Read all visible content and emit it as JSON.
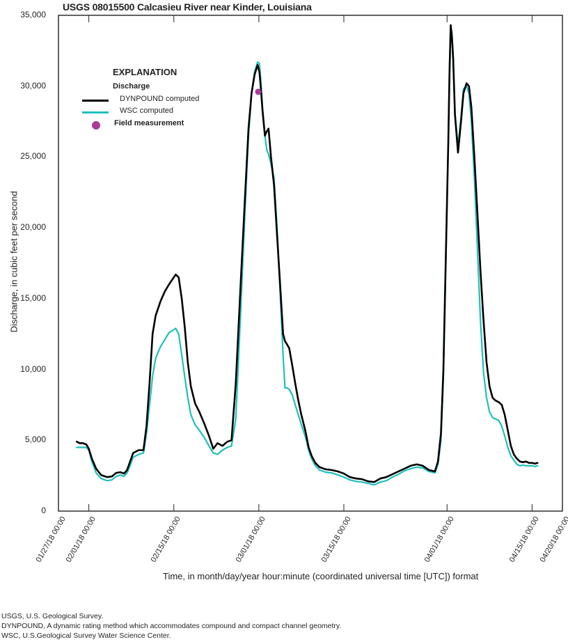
{
  "chart_data": {
    "type": "line",
    "title": "USGS 08015500 Calcasieu River near Kinder, Louisiana",
    "xlabel": "Time, in month/day/year hour:minute (coordinated universal time [UTC]) format",
    "ylabel": "Discharge, in cubic feet per second",
    "ylim": [
      0,
      35000
    ],
    "yticks": [
      "0",
      "5,000",
      "10,000",
      "15,000",
      "20,000",
      "25,000",
      "30,000",
      "35,000"
    ],
    "xticks": [
      {
        "label": "01/27/18 00:00",
        "day": 0
      },
      {
        "label": "02/01/18 00:00",
        "day": 5
      },
      {
        "label": "02/15/18 00:00",
        "day": 19
      },
      {
        "label": "03/01/18 00:00",
        "day": 33
      },
      {
        "label": "03/15/18 00:00",
        "day": 47
      },
      {
        "label": "04/01/18 00:00",
        "day": 64
      },
      {
        "label": "04/15/18 00:00",
        "day": 78
      },
      {
        "label": "04/20/18 00:00",
        "day": 83
      }
    ],
    "x_unit": "days since 01/27/18 00:00",
    "grid": false,
    "legend_position": "upper-left inside",
    "series": [
      {
        "name": "DYNPOUND computed",
        "color": "#000000",
        "x": [
          3.0,
          3.5,
          4.0,
          4.6,
          5.0,
          5.5,
          6.2,
          7.0,
          8.0,
          8.8,
          9.5,
          10.2,
          10.8,
          11.3,
          11.8,
          12.3,
          13.2,
          14.0,
          14.5,
          15.0,
          15.5,
          16.0,
          16.8,
          17.5,
          18.2,
          19.0,
          19.3,
          19.8,
          20.3,
          20.8,
          21.3,
          21.8,
          22.5,
          23.2,
          24.0,
          24.8,
          25.5,
          26.2,
          27.0,
          27.8,
          28.5,
          29.2,
          30.0,
          30.7,
          31.3,
          31.8,
          32.3,
          32.8,
          33.1,
          33.3,
          33.6,
          34.0,
          34.3,
          34.6,
          35.0,
          35.5,
          36.0,
          36.5,
          37.0,
          37.3,
          37.6,
          38.0,
          38.5,
          39.0,
          39.5,
          40.0,
          40.7,
          41.2,
          41.7,
          42.3,
          43.0,
          44.0,
          45.0,
          46.0,
          47.0,
          48.0,
          49.0,
          50.0,
          51.0,
          52.0,
          53.0,
          54.0,
          55.0,
          56.0,
          57.0,
          58.0,
          59.0,
          60.0,
          61.0,
          62.0,
          62.5,
          63.0,
          63.4,
          63.8,
          64.2,
          64.4,
          64.6,
          64.8,
          65.0,
          65.3,
          65.8,
          66.3,
          66.7,
          67.2,
          67.6,
          68.0,
          68.5,
          69.0,
          69.5,
          70.0,
          70.5,
          71.0,
          71.5,
          72.0,
          72.5,
          73.0,
          73.5,
          74.0,
          74.5,
          75.0,
          75.5,
          76.0,
          76.5,
          77.0,
          77.5,
          78.0,
          78.5,
          78.9
        ],
        "y": [
          4900,
          4800,
          4800,
          4700,
          4400,
          3700,
          3000,
          2550,
          2400,
          2450,
          2700,
          2750,
          2650,
          2900,
          3500,
          4100,
          4300,
          4300,
          6000,
          9000,
          12500,
          13800,
          14800,
          15500,
          16000,
          16500,
          16700,
          16500,
          15000,
          13000,
          10500,
          8800,
          7600,
          7000,
          6200,
          5300,
          4400,
          4800,
          4600,
          4900,
          5000,
          9000,
          16000,
          22000,
          27000,
          29500,
          30800,
          31500,
          31000,
          30000,
          28300,
          26500,
          26800,
          27000,
          25000,
          23000,
          19500,
          16000,
          12500,
          12000,
          11800,
          11500,
          10300,
          9000,
          7800,
          6800,
          5600,
          4500,
          3900,
          3400,
          3100,
          2950,
          2900,
          2800,
          2650,
          2400,
          2300,
          2250,
          2100,
          2050,
          2300,
          2400,
          2600,
          2800,
          3000,
          3200,
          3300,
          3200,
          2900,
          2800,
          3500,
          5500,
          10000,
          18000,
          26000,
          31000,
          34300,
          33500,
          32000,
          28000,
          25300,
          27500,
          29500,
          30200,
          30000,
          28500,
          25000,
          21000,
          17000,
          13500,
          10500,
          8800,
          8000,
          7800,
          7700,
          7500,
          6800,
          5700,
          4600,
          4000,
          3700,
          3500,
          3450,
          3500,
          3400,
          3400,
          3350,
          3400
        ],
        "peaks": [
          {
            "day": 19.3,
            "value": 16700
          },
          {
            "day": 33.1,
            "value": 31500
          },
          {
            "day": 64.4,
            "value": 34300
          }
        ]
      },
      {
        "name": "WSC computed",
        "color": "#1fbfbf",
        "x": [
          3.0,
          3.5,
          4.0,
          4.6,
          5.0,
          5.5,
          6.2,
          7.0,
          8.0,
          8.8,
          9.5,
          10.2,
          10.8,
          11.3,
          11.8,
          12.3,
          13.2,
          14.0,
          14.5,
          15.0,
          15.5,
          16.0,
          16.8,
          17.5,
          18.2,
          19.0,
          19.3,
          19.8,
          20.3,
          20.8,
          21.3,
          21.8,
          22.5,
          23.2,
          24.0,
          24.8,
          25.5,
          26.2,
          27.0,
          27.8,
          28.5,
          29.2,
          30.0,
          30.7,
          31.3,
          31.8,
          32.3,
          32.8,
          33.1,
          33.3,
          33.6,
          34.0,
          34.3,
          34.6,
          35.0,
          35.5,
          36.0,
          36.5,
          37.0,
          37.3,
          37.6,
          38.0,
          38.5,
          39.0,
          39.5,
          40.0,
          40.7,
          41.2,
          41.7,
          42.3,
          43.0,
          44.0,
          45.0,
          46.0,
          47.0,
          48.0,
          49.0,
          50.0,
          51.0,
          52.0,
          53.0,
          54.0,
          55.0,
          56.0,
          57.0,
          58.0,
          59.0,
          60.0,
          61.0,
          62.0,
          62.5,
          63.0,
          63.4,
          63.8,
          64.2,
          64.4,
          64.6,
          64.8,
          65.0,
          65.3,
          65.8,
          66.3,
          66.7,
          67.2,
          67.6,
          68.0,
          68.5,
          69.0,
          69.5,
          70.0,
          70.5,
          71.0,
          71.5,
          72.0,
          72.5,
          73.0,
          73.5,
          74.0,
          74.5,
          75.0,
          75.5,
          76.0,
          76.5,
          77.0,
          77.5,
          78.0,
          78.5,
          78.9
        ],
        "y": [
          4500,
          4500,
          4500,
          4500,
          4300,
          3500,
          2700,
          2300,
          2150,
          2200,
          2450,
          2550,
          2450,
          2700,
          3200,
          3800,
          4000,
          4100,
          5500,
          7500,
          9500,
          10800,
          11600,
          12100,
          12600,
          12800,
          12900,
          12500,
          11000,
          9500,
          8000,
          6800,
          6100,
          5700,
          5200,
          4600,
          4100,
          4000,
          4300,
          4500,
          4600,
          6500,
          14000,
          21000,
          26500,
          29500,
          31000,
          31700,
          31600,
          30500,
          28500,
          26500,
          25500,
          25200,
          24500,
          23500,
          20000,
          15500,
          11000,
          8700,
          8700,
          8600,
          8200,
          7500,
          6800,
          6100,
          5200,
          4300,
          3700,
          3200,
          2900,
          2750,
          2700,
          2550,
          2400,
          2200,
          2100,
          2050,
          1950,
          1850,
          2050,
          2150,
          2400,
          2600,
          2850,
          3000,
          3100,
          3050,
          2800,
          2700,
          3300,
          5000,
          9500,
          17500,
          26000,
          31500,
          34200,
          33800,
          32000,
          28000,
          25800,
          27800,
          29800,
          30000,
          29500,
          27500,
          23500,
          18500,
          13500,
          9800,
          8000,
          7000,
          6600,
          6500,
          6400,
          6000,
          5300,
          4500,
          3900,
          3600,
          3300,
          3200,
          3250,
          3200,
          3200,
          3200,
          3150,
          3200
        ]
      }
    ],
    "field_measurements": {
      "name": "Field measurement",
      "color": "#a83c98",
      "points": [
        {
          "day": 32.9,
          "value": 29600
        }
      ]
    }
  },
  "legend": {
    "title": "EXPLANATION",
    "group": "Discharge",
    "items": [
      "DYNPOUND computed",
      "WSC computed",
      "Field measurement"
    ]
  },
  "notes": [
    "USGS, U.S. Geological Survey.",
    "DYNPOUND, A dynamic rating method which accommodates compound and compact channel geometry.",
    "WSC, U.S.Geological Survey Water Science Center."
  ]
}
